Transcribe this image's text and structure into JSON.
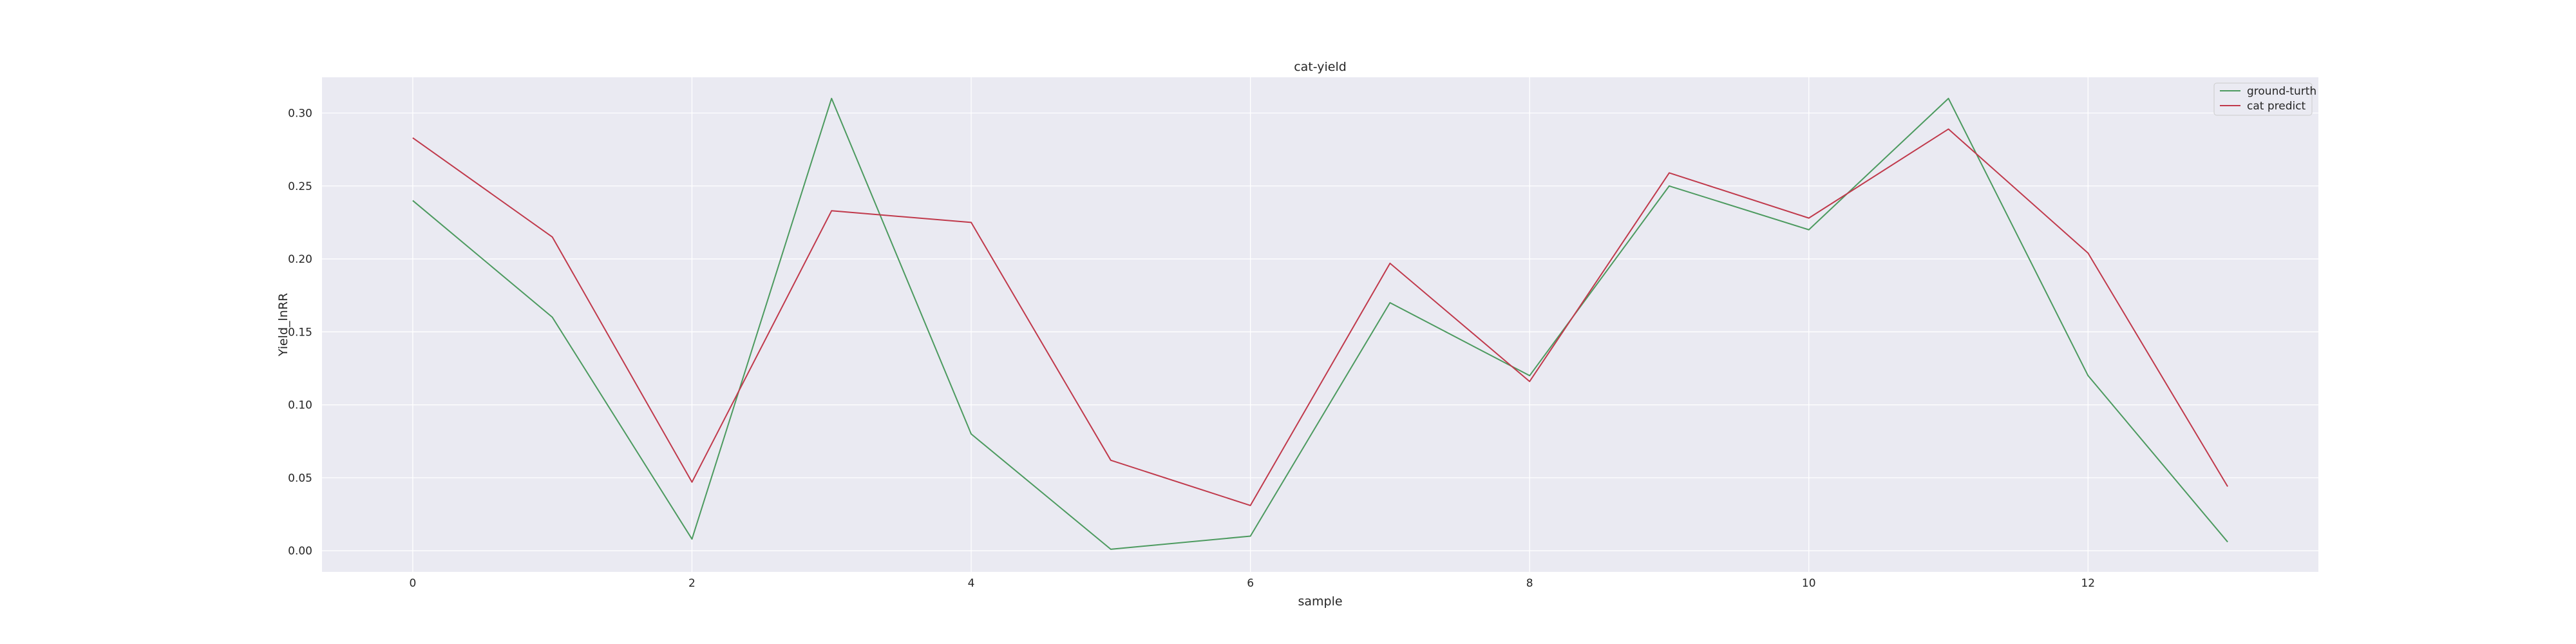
{
  "chart_data": {
    "type": "line",
    "title": "cat-yield",
    "xlabel": "sample",
    "ylabel": "Yield_lnRR",
    "x": [
      0,
      1,
      2,
      3,
      4,
      5,
      6,
      7,
      8,
      9,
      10,
      11,
      12,
      13
    ],
    "series": [
      {
        "name": "ground-turth",
        "color": "#4c9a5f",
        "values": [
          0.24,
          0.16,
          0.008,
          0.31,
          0.08,
          0.001,
          0.01,
          0.17,
          0.12,
          0.25,
          0.22,
          0.31,
          0.12,
          0.006
        ]
      },
      {
        "name": "cat predict",
        "color": "#c0394b",
        "values": [
          0.283,
          0.215,
          0.047,
          0.233,
          0.225,
          0.062,
          0.031,
          0.197,
          0.116,
          0.259,
          0.228,
          0.289,
          0.204,
          0.044
        ]
      }
    ],
    "xlim": [
      -0.65,
      13.65
    ],
    "ylim": [
      -0.0145,
      0.3245
    ],
    "xticks": [
      "0",
      "2",
      "4",
      "6",
      "8",
      "10",
      "12"
    ],
    "yticks": [
      "0.00",
      "0.05",
      "0.10",
      "0.15",
      "0.20",
      "0.25",
      "0.30"
    ],
    "grid": true,
    "legend_position": "top-right",
    "background_color": "#eaeaf2",
    "grid_color": "#ffffff"
  }
}
